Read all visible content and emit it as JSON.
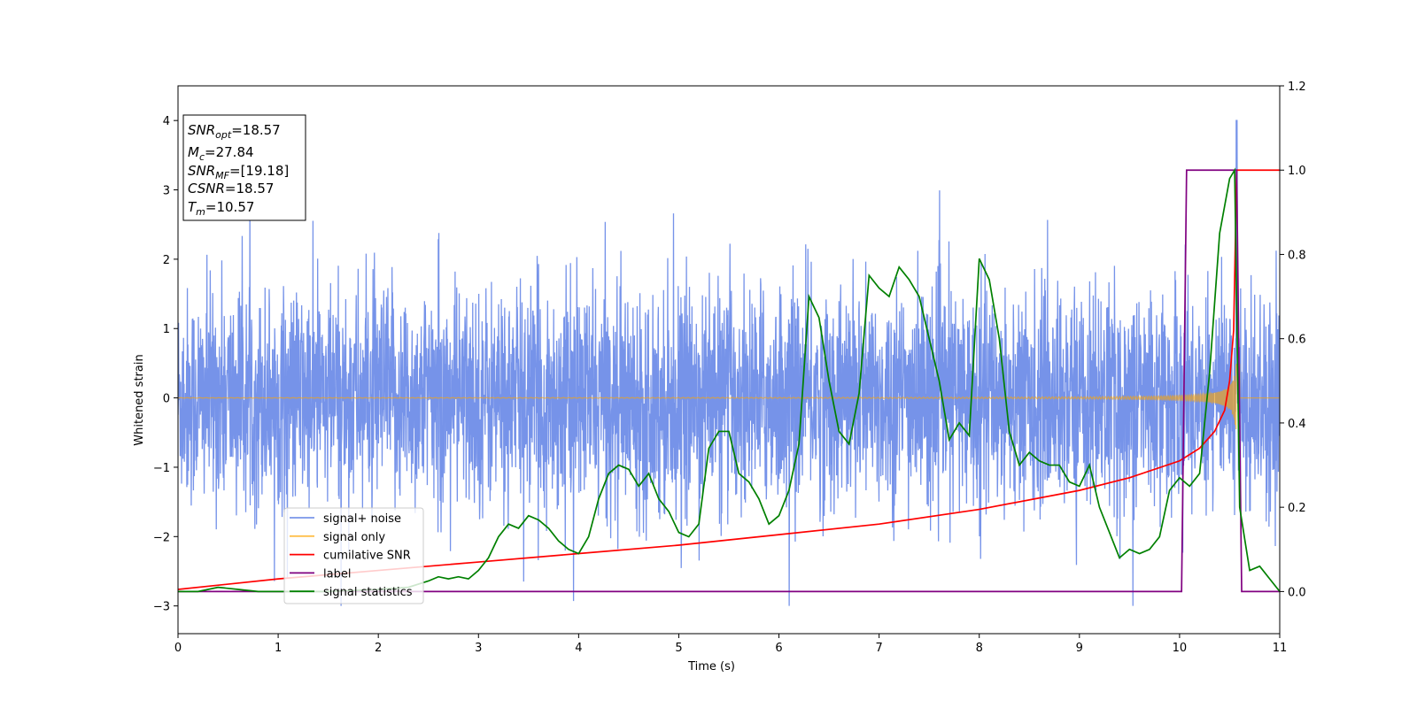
{
  "chart_data": {
    "type": "line",
    "title": "",
    "xlabel": "Time (s)",
    "ylabel": "Whitened strain",
    "y2label": "",
    "xlim": [
      0,
      11
    ],
    "ylim": [
      -3.4,
      4.5
    ],
    "y2lim": [
      -0.1,
      1.2
    ],
    "x_ticks": [
      "0",
      "1",
      "2",
      "3",
      "4",
      "5",
      "6",
      "7",
      "8",
      "9",
      "10",
      "11"
    ],
    "y_ticks": [
      "−3",
      "−2",
      "−1",
      "0",
      "1",
      "2",
      "3",
      "4"
    ],
    "y2_ticks": [
      "0.0",
      "0.2",
      "0.4",
      "0.6",
      "0.8",
      "1.0",
      "1.2"
    ],
    "grid": false,
    "legend_position": "lower-left",
    "legend": [
      {
        "label": "signal+ noise",
        "color": "#4169e1"
      },
      {
        "label": "signal only",
        "color": "#ffa500"
      },
      {
        "label": "cumilative SNR",
        "color": "#ff0000"
      },
      {
        "label": "label",
        "color": "#800080"
      },
      {
        "label": "signal statistics",
        "color": "#008000"
      }
    ],
    "info_box": [
      {
        "base": "SNR",
        "sub": "opt",
        "rest": "=18.57"
      },
      {
        "base": "M",
        "sub": "c",
        "rest": "=27.84"
      },
      {
        "base": "SNR",
        "sub": "MF",
        "rest": "=[19.18]"
      },
      {
        "base": "CSNR",
        "sub": "",
        "rest": "=18.57"
      },
      {
        "base": "T",
        "sub": "m",
        "rest": "=10.57"
      }
    ],
    "series": [
      {
        "name": "signal+ noise",
        "axis": "left",
        "color": "#4169e1",
        "noise_amplitude_typical": 1.0,
        "noise_range": [
          -3.0,
          4.0
        ],
        "x_range": [
          0,
          11
        ]
      },
      {
        "name": "signal only",
        "axis": "left",
        "color": "#ffa500",
        "chirp_peak_time": 10.57,
        "peak_amplitude": 3.0,
        "end_time": 10.6
      },
      {
        "name": "cumilative SNR",
        "axis": "right",
        "color": "#ff0000",
        "x": [
          0,
          1,
          2,
          3,
          4,
          5,
          6,
          7,
          8,
          9,
          9.5,
          10,
          10.2,
          10.35,
          10.45,
          10.5,
          10.54,
          10.57,
          11
        ],
        "y": [
          0.005,
          0.03,
          0.05,
          0.07,
          0.09,
          0.11,
          0.135,
          0.16,
          0.195,
          0.24,
          0.27,
          0.31,
          0.34,
          0.38,
          0.43,
          0.5,
          0.62,
          1.0,
          1.0
        ]
      },
      {
        "name": "label",
        "axis": "right",
        "color": "#800080",
        "x": [
          0,
          10.02,
          10.07,
          10.57,
          10.62,
          11
        ],
        "y": [
          0,
          0,
          1,
          1,
          0,
          0
        ]
      },
      {
        "name": "signal statistics",
        "axis": "right",
        "color": "#008000",
        "x": [
          0,
          0.2,
          0.4,
          0.6,
          0.8,
          1.0,
          1.5,
          2.0,
          2.3,
          2.5,
          2.6,
          2.7,
          2.8,
          2.9,
          3.0,
          3.1,
          3.2,
          3.3,
          3.4,
          3.5,
          3.6,
          3.7,
          3.8,
          3.9,
          4.0,
          4.1,
          4.2,
          4.3,
          4.4,
          4.5,
          4.6,
          4.7,
          4.8,
          4.9,
          5.0,
          5.1,
          5.2,
          5.3,
          5.4,
          5.5,
          5.6,
          5.7,
          5.8,
          5.9,
          6.0,
          6.1,
          6.2,
          6.3,
          6.4,
          6.5,
          6.6,
          6.7,
          6.8,
          6.9,
          7.0,
          7.1,
          7.2,
          7.3,
          7.4,
          7.5,
          7.6,
          7.7,
          7.8,
          7.9,
          8.0,
          8.1,
          8.2,
          8.3,
          8.4,
          8.5,
          8.6,
          8.7,
          8.8,
          8.9,
          9.0,
          9.1,
          9.2,
          9.3,
          9.4,
          9.5,
          9.6,
          9.7,
          9.8,
          9.9,
          10.0,
          10.1,
          10.2,
          10.3,
          10.4,
          10.5,
          10.55,
          10.6,
          10.7,
          10.8,
          10.9,
          11.0
        ],
        "y": [
          0,
          0.0,
          0.01,
          0.005,
          0.0,
          0.0,
          0.0,
          0.005,
          0.01,
          0.025,
          0.035,
          0.03,
          0.035,
          0.03,
          0.05,
          0.08,
          0.13,
          0.16,
          0.15,
          0.18,
          0.17,
          0.15,
          0.12,
          0.1,
          0.09,
          0.13,
          0.22,
          0.28,
          0.3,
          0.29,
          0.25,
          0.28,
          0.22,
          0.19,
          0.14,
          0.13,
          0.16,
          0.34,
          0.38,
          0.38,
          0.28,
          0.26,
          0.22,
          0.16,
          0.18,
          0.24,
          0.35,
          0.7,
          0.65,
          0.5,
          0.38,
          0.35,
          0.47,
          0.75,
          0.72,
          0.7,
          0.77,
          0.74,
          0.7,
          0.6,
          0.5,
          0.36,
          0.4,
          0.37,
          0.79,
          0.74,
          0.6,
          0.38,
          0.3,
          0.33,
          0.31,
          0.3,
          0.3,
          0.26,
          0.25,
          0.3,
          0.2,
          0.14,
          0.08,
          0.1,
          0.09,
          0.1,
          0.13,
          0.24,
          0.27,
          0.25,
          0.28,
          0.52,
          0.85,
          0.98,
          1.0,
          0.2,
          0.05,
          0.06,
          0.03,
          0.0
        ]
      }
    ]
  }
}
